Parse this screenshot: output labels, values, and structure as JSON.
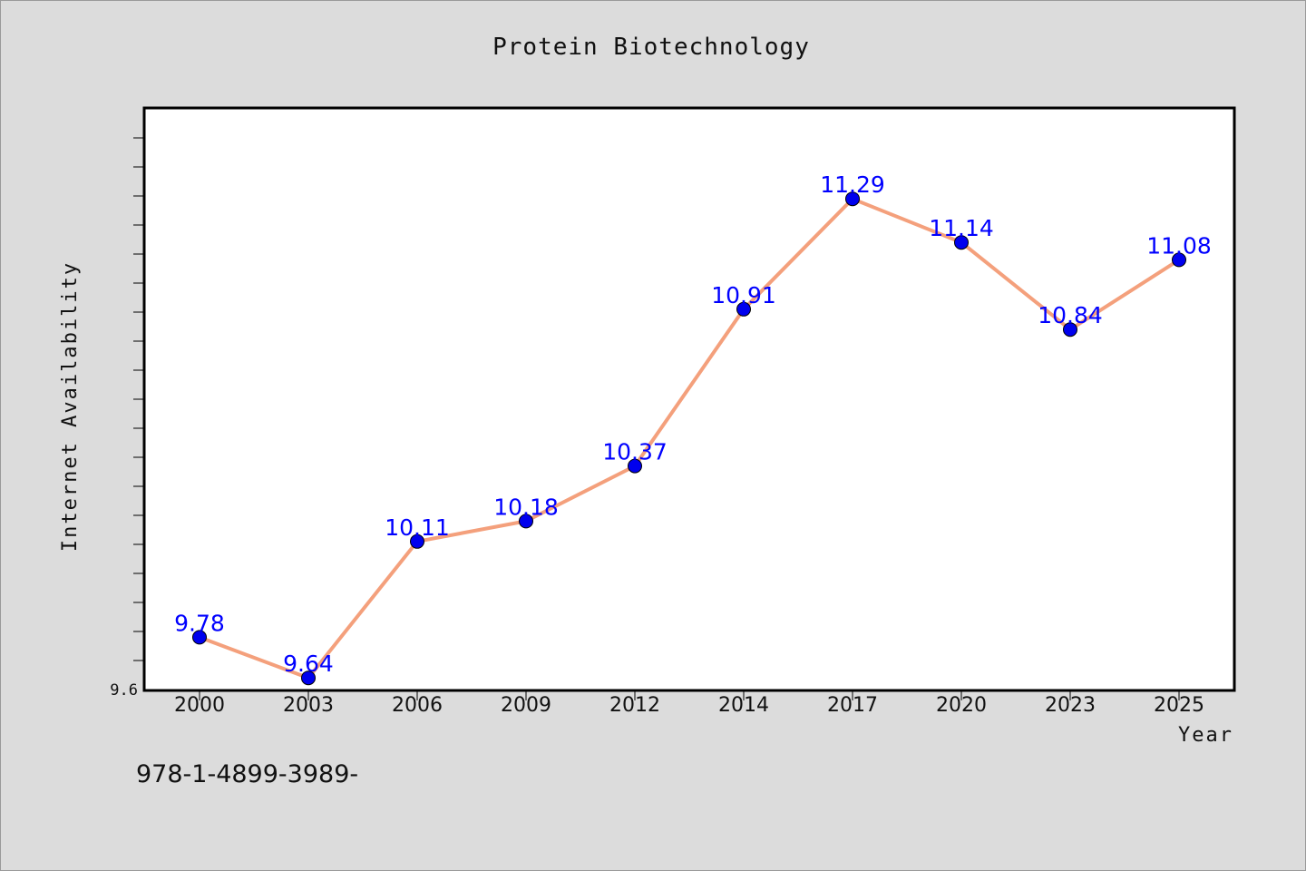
{
  "chart_data": {
    "type": "line",
    "title": "Protein Biotechnology",
    "xlabel": "Year",
    "ylabel": "Internet Availability",
    "categories": [
      "2000",
      "2003",
      "2006",
      "2009",
      "2012",
      "2014",
      "2017",
      "2020",
      "2023",
      "2025"
    ],
    "series": [
      {
        "values": [
          9.78,
          9.64,
          10.11,
          10.18,
          10.37,
          10.91,
          11.29,
          11.14,
          10.84,
          11.08
        ],
        "labels": [
          "9.78",
          "9.64",
          "10.11",
          "10.18",
          "10.37",
          "10.91",
          "11.29",
          "11.14",
          "10.84",
          "11.08"
        ],
        "line_color": "#f4a07c",
        "marker_color": "#0000ee"
      }
    ],
    "ylim": [
      9.6,
      11.6
    ],
    "y_tick_labels": [
      "9.6"
    ],
    "grid": false,
    "legend": "none",
    "data_labels": true
  },
  "footer": {
    "text": "978-1-4899-3989-"
  },
  "colors": {
    "background": "#dcdcdc",
    "plot_background": "#ffffff",
    "data_label": "#0000ff"
  }
}
